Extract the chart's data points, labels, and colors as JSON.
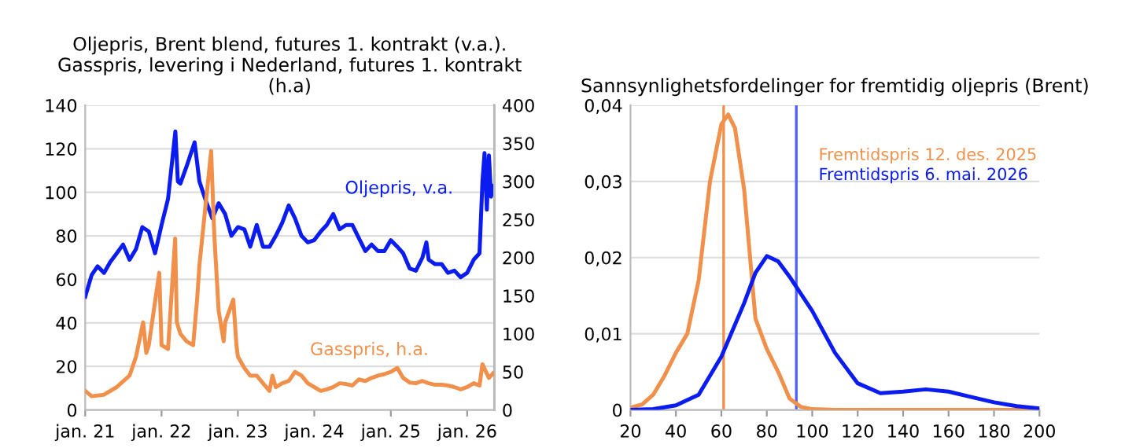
{
  "chart_data": [
    {
      "type": "line",
      "title": "Oljepris, Brent blend, futures 1. kontrakt (v.a.).\nGasspris, levering i Nederland, futures 1. kontrakt\n(h.a)",
      "legend": false,
      "grid": "y",
      "xlim": [
        "2021-01-01",
        "2026-05-10"
      ],
      "xticks": [
        {
          "value": "2021-01-01",
          "label": "jan. 21"
        },
        {
          "value": "2022-01-01",
          "label": "jan. 22"
        },
        {
          "value": "2023-01-01",
          "label": "jan. 23"
        },
        {
          "value": "2024-01-01",
          "label": "jan. 24"
        },
        {
          "value": "2025-01-01",
          "label": "jan. 25"
        },
        {
          "value": "2026-01-01",
          "label": "jan. 26"
        }
      ],
      "ylim": [
        0,
        140
      ],
      "yticks": [
        0,
        20,
        40,
        60,
        80,
        100,
        120,
        140
      ],
      "y2lim": [
        0,
        400
      ],
      "y2ticks": [
        0,
        50,
        100,
        150,
        200,
        250,
        300,
        350,
        400
      ],
      "series": [
        {
          "name": "Oljepris, v.a.",
          "color": "#0a1cf0",
          "x": [
            "2021-01-01",
            "2021-02-01",
            "2021-03-01",
            "2021-04-01",
            "2021-05-01",
            "2021-06-01",
            "2021-07-01",
            "2021-08-01",
            "2021-09-01",
            "2021-10-01",
            "2021-11-01",
            "2021-12-01",
            "2022-01-01",
            "2022-02-01",
            "2022-03-08",
            "2022-03-20",
            "2022-04-01",
            "2022-05-01",
            "2022-06-08",
            "2022-07-01",
            "2022-08-01",
            "2022-09-01",
            "2022-10-01",
            "2022-11-01",
            "2022-12-01",
            "2023-01-01",
            "2023-02-01",
            "2023-03-01",
            "2023-04-01",
            "2023-05-01",
            "2023-06-01",
            "2023-07-01",
            "2023-08-01",
            "2023-09-01",
            "2023-10-01",
            "2023-11-01",
            "2023-12-01",
            "2024-01-01",
            "2024-02-01",
            "2024-03-01",
            "2024-04-01",
            "2024-05-01",
            "2024-06-01",
            "2024-07-01",
            "2024-08-01",
            "2024-09-01",
            "2024-10-01",
            "2024-11-01",
            "2024-12-01",
            "2025-01-01",
            "2025-02-01",
            "2025-03-01",
            "2025-04-01",
            "2025-05-01",
            "2025-06-01",
            "2025-06-20",
            "2025-07-01",
            "2025-08-01",
            "2025-09-01",
            "2025-10-01",
            "2025-11-01",
            "2025-12-01",
            "2026-01-01",
            "2026-02-01",
            "2026-03-01",
            "2026-03-15",
            "2026-03-25",
            "2026-04-05",
            "2026-04-15",
            "2026-04-25",
            "2026-05-05"
          ],
          "values": [
            52,
            62,
            66,
            63,
            68,
            72,
            76,
            69,
            74,
            84,
            82,
            72,
            85,
            97,
            128,
            105,
            104,
            112,
            123,
            105,
            96,
            88,
            95,
            90,
            80,
            84,
            83,
            75,
            85,
            75,
            75,
            80,
            86,
            94,
            88,
            80,
            77,
            78,
            82,
            85,
            90,
            83,
            85,
            85,
            79,
            73,
            76,
            73,
            73,
            78,
            75,
            72,
            65,
            64,
            70,
            77,
            69,
            67,
            67,
            63,
            64,
            61,
            63,
            69,
            72,
            105,
            118,
            92,
            117,
            98,
            103
          ]
        },
        {
          "name": "Gasspris, h.a.",
          "color": "#f0904a",
          "axis": "y2",
          "x": [
            "2021-01-01",
            "2021-02-01",
            "2021-04-01",
            "2021-06-01",
            "2021-08-01",
            "2021-09-01",
            "2021-10-05",
            "2021-10-20",
            "2021-11-01",
            "2021-12-21",
            "2022-01-01",
            "2022-02-01",
            "2022-03-07",
            "2022-03-15",
            "2022-04-01",
            "2022-05-01",
            "2022-06-01",
            "2022-06-20",
            "2022-07-01",
            "2022-08-26",
            "2022-09-10",
            "2022-10-01",
            "2022-10-25",
            "2022-11-01",
            "2022-12-10",
            "2022-12-25",
            "2023-01-01",
            "2023-02-01",
            "2023-03-01",
            "2023-04-01",
            "2023-05-01",
            "2023-06-01",
            "2023-06-15",
            "2023-07-01",
            "2023-08-01",
            "2023-09-01",
            "2023-10-01",
            "2023-11-01",
            "2023-12-01",
            "2024-01-01",
            "2024-02-01",
            "2024-03-01",
            "2024-04-01",
            "2024-05-01",
            "2024-06-01",
            "2024-07-01",
            "2024-08-01",
            "2024-09-01",
            "2024-10-01",
            "2024-11-01",
            "2024-12-01",
            "2025-01-01",
            "2025-02-01",
            "2025-03-01",
            "2025-04-01",
            "2025-05-01",
            "2025-06-01",
            "2025-07-01",
            "2025-08-01",
            "2025-09-01",
            "2025-10-01",
            "2025-11-01",
            "2025-12-01",
            "2026-01-01",
            "2026-02-01",
            "2026-03-01",
            "2026-03-15",
            "2026-04-01",
            "2026-04-15",
            "2026-05-05"
          ],
          "values": [
            25,
            18,
            20,
            30,
            45,
            70,
            115,
            75,
            85,
            180,
            85,
            80,
            225,
            115,
            100,
            90,
            85,
            145,
            190,
            340,
            230,
            130,
            90,
            115,
            145,
            85,
            70,
            55,
            45,
            45,
            35,
            25,
            45,
            30,
            35,
            38,
            50,
            45,
            35,
            30,
            25,
            27,
            30,
            35,
            34,
            32,
            40,
            38,
            42,
            45,
            47,
            50,
            55,
            42,
            36,
            35,
            38,
            35,
            33,
            33,
            32,
            30,
            27,
            30,
            35,
            32,
            60,
            50,
            42,
            48
          ]
        }
      ]
    },
    {
      "type": "line",
      "title": "Sannsynlighetsfordelinger for fremtidig oljepris (Brent)",
      "legend": false,
      "grid": "y",
      "xlim": [
        20,
        200
      ],
      "xticks": [
        20,
        40,
        60,
        80,
        100,
        120,
        140,
        160,
        180,
        200
      ],
      "ylim": [
        0,
        0.04
      ],
      "yticks": [
        0,
        {
          "value": 0.01,
          "label": "0,01"
        },
        {
          "value": 0.02,
          "label": "0,02"
        },
        {
          "value": 0.03,
          "label": "0,03"
        },
        {
          "value": 0.04,
          "label": "0,04"
        }
      ],
      "ref_lines": [
        {
          "axis": "x",
          "value": 61,
          "color": "#f0904a"
        },
        {
          "axis": "x",
          "value": 93,
          "color": "#5060f8"
        }
      ],
      "series": [
        {
          "name": "Fremtidspris 12. des. 2025",
          "color": "#f0904a",
          "x": [
            20,
            25,
            30,
            35,
            40,
            45,
            50,
            55,
            60,
            63,
            66,
            70,
            75,
            80,
            85,
            90,
            95,
            100,
            110,
            200
          ],
          "values": [
            0.0003,
            0.0007,
            0.002,
            0.0045,
            0.0075,
            0.01,
            0.017,
            0.03,
            0.0375,
            0.0388,
            0.037,
            0.029,
            0.012,
            0.008,
            0.005,
            0.0015,
            0.0004,
            0.0001,
            0,
            0
          ]
        },
        {
          "name": "Fremtidspris 6. mai. 2026",
          "color": "#0a1cf0",
          "x": [
            20,
            30,
            40,
            50,
            60,
            70,
            75,
            80,
            85,
            90,
            100,
            110,
            120,
            130,
            140,
            150,
            160,
            170,
            180,
            190,
            200
          ],
          "values": [
            0,
            0.0001,
            0.0006,
            0.002,
            0.007,
            0.014,
            0.018,
            0.0202,
            0.0195,
            0.0175,
            0.013,
            0.0075,
            0.0035,
            0.0022,
            0.0024,
            0.0027,
            0.0024,
            0.0017,
            0.001,
            0.0005,
            0.0002
          ]
        }
      ]
    }
  ]
}
